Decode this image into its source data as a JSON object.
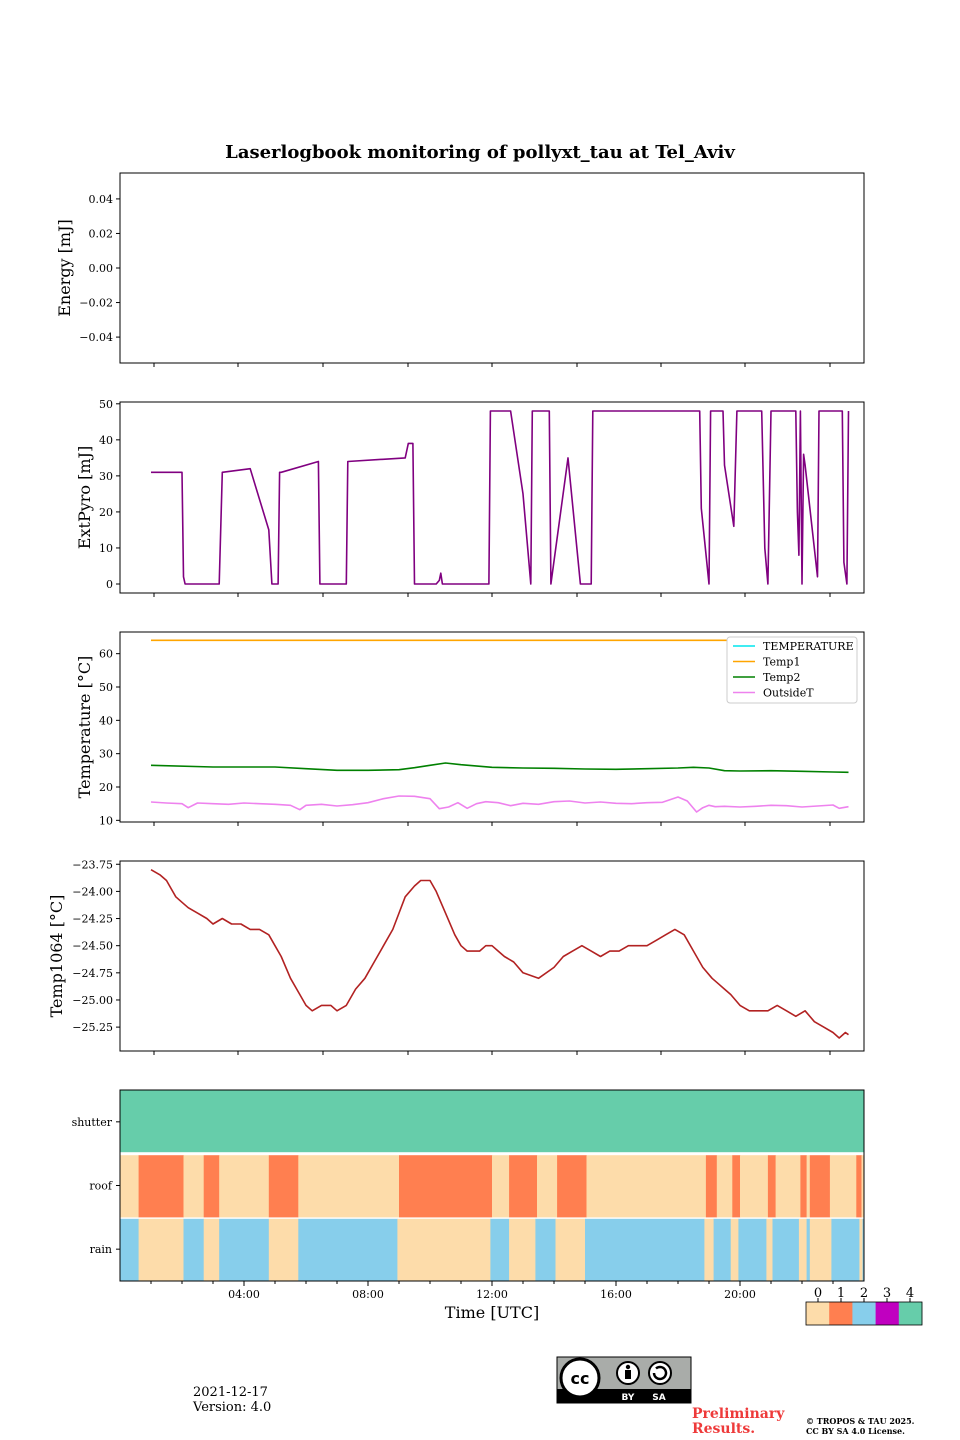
{
  "title": "Laserlogbook monitoring of pollyxt_tau at Tel_Aviv",
  "x_label": "Time [UTC]",
  "x_ticks": [
    "04:00",
    "08:00",
    "12:00",
    "16:00",
    "20:00"
  ],
  "chart_data": [
    {
      "type": "line",
      "ylabel": "Energy [mJ]",
      "yticks": [
        "0.04",
        "0.02",
        "0.00",
        "−0.02",
        "−0.04"
      ],
      "ylim": [
        -0.055,
        0.055
      ],
      "series": []
    },
    {
      "type": "line",
      "ylabel": "ExtPyro [mJ]",
      "yticks": [
        "50",
        "40",
        "30",
        "20",
        "10",
        "0"
      ],
      "ylim": [
        -2.5,
        50.5
      ],
      "xlim_hours": [
        -1.0,
        23.0
      ],
      "color": "#800080",
      "series": [
        {
          "x": [
            0.0,
            1.0,
            1.05,
            1.1,
            2.2,
            2.3,
            3.2,
            3.8,
            3.9,
            4.1,
            4.15,
            4.2,
            5.4,
            5.45,
            6.3,
            6.35,
            8.2,
            8.3,
            8.45,
            8.5,
            9.2,
            9.3,
            9.35,
            9.4,
            10.9,
            10.95,
            11.6,
            12.0,
            12.25,
            12.3,
            12.85,
            12.9,
            13.45,
            13.85,
            14.2,
            14.25,
            17.7,
            17.75,
            18.0,
            18.05,
            18.45,
            18.5,
            18.8,
            18.9,
            18.95,
            19.7,
            19.8,
            19.9,
            20.0,
            20.8,
            20.85,
            20.9,
            20.95,
            21.0,
            21.05,
            21.1,
            21.5,
            21.55,
            22.3,
            22.35,
            22.45,
            22.5
          ],
          "y": [
            31,
            31,
            2,
            0,
            0,
            31,
            32,
            15,
            0,
            0,
            31,
            31,
            34,
            0,
            0,
            34,
            35,
            39,
            39,
            0,
            0,
            1,
            3,
            0,
            0,
            48,
            48,
            25,
            0,
            48,
            48,
            0,
            35,
            0,
            0,
            48,
            48,
            21,
            0,
            48,
            48,
            33,
            16,
            48,
            48,
            48,
            10,
            0,
            48,
            48,
            20,
            8,
            48,
            0,
            36,
            33,
            2,
            48,
            48,
            6,
            0,
            48
          ]
        }
      ]
    },
    {
      "type": "line",
      "ylabel": "Temperature [°C]",
      "yticks": [
        "60",
        "50",
        "40",
        "30",
        "20",
        "10"
      ],
      "ylim": [
        9.5,
        66.5
      ],
      "xlim_hours": [
        -1.0,
        23.0
      ],
      "legend": "top-right",
      "series": [
        {
          "name": "TEMPERATURE",
          "color": "#00e5ee",
          "x": [],
          "y": []
        },
        {
          "name": "Temp1",
          "color": "#ffa500",
          "x": [
            0,
            22.5
          ],
          "y": [
            64,
            64
          ]
        },
        {
          "name": "Temp2",
          "color": "#008000",
          "x": [
            0,
            2,
            4,
            5,
            6,
            7,
            8,
            8.5,
            9,
            9.5,
            10,
            11,
            12,
            13,
            14,
            15,
            16,
            17,
            17.5,
            18,
            18.5,
            19,
            20,
            21,
            22,
            22.5
          ],
          "y": [
            26.5,
            26,
            26,
            25.5,
            25,
            25,
            25.2,
            25.8,
            26.5,
            27.2,
            26.7,
            25.9,
            25.7,
            25.6,
            25.4,
            25.3,
            25.5,
            25.7,
            25.9,
            25.7,
            24.9,
            24.8,
            24.9,
            24.7,
            24.5,
            24.4
          ]
        },
        {
          "name": "OutsideT",
          "color": "#ee82ee",
          "x": [
            0,
            0.5,
            1,
            1.2,
            1.5,
            2,
            2.5,
            3,
            3.5,
            4,
            4.5,
            4.8,
            5,
            5.5,
            6,
            6.5,
            7,
            7.5,
            8,
            8.5,
            9,
            9.3,
            9.6,
            9.9,
            10.2,
            10.5,
            10.8,
            11.2,
            11.6,
            12,
            12.5,
            13,
            13.5,
            14,
            14.5,
            15,
            15.5,
            16,
            16.5,
            17,
            17.3,
            17.6,
            17.8,
            18,
            18.2,
            18.5,
            19,
            19.5,
            20,
            20.5,
            21,
            21.5,
            22,
            22.2,
            22.5
          ],
          "y": [
            15.5,
            15.2,
            15,
            13.8,
            15.2,
            15,
            14.8,
            15.2,
            15,
            14.8,
            14.5,
            13.2,
            14.5,
            14.8,
            14.3,
            14.7,
            15.3,
            16.5,
            17.3,
            17.2,
            16.5,
            13.5,
            14,
            15.3,
            13.6,
            15,
            15.6,
            15.3,
            14.4,
            15.1,
            14.8,
            15.6,
            15.8,
            15.2,
            15.5,
            15.1,
            15,
            15.3,
            15.4,
            17,
            15.8,
            12.5,
            13.8,
            14.5,
            14.1,
            14.2,
            14,
            14.2,
            14.5,
            14.4,
            14,
            14.3,
            14.6,
            13.6,
            14.1
          ]
        }
      ]
    },
    {
      "type": "line",
      "ylabel": "Temp1064 [°C]",
      "yticks": [
        "−23.75",
        "−24.00",
        "−24.25",
        "−24.50",
        "−24.75",
        "−25.00",
        "−25.25"
      ],
      "ylim": [
        -25.47,
        -23.72
      ],
      "xlim_hours": [
        -1.0,
        23.0
      ],
      "color": "#b22222",
      "series": [
        {
          "x": [
            0,
            0.3,
            0.5,
            0.7,
            0.8,
            1.0,
            1.2,
            1.5,
            1.8,
            2.0,
            2.3,
            2.6,
            2.9,
            3.2,
            3.5,
            3.8,
            4.0,
            4.2,
            4.5,
            4.8,
            5.0,
            5.2,
            5.5,
            5.8,
            6.0,
            6.3,
            6.6,
            6.9,
            7.2,
            7.5,
            7.8,
            8.0,
            8.2,
            8.5,
            8.7,
            9.0,
            9.2,
            9.5,
            9.8,
            10.0,
            10.2,
            10.4,
            10.6,
            10.8,
            11.0,
            11.2,
            11.4,
            11.7,
            12.0,
            12.5,
            13.0,
            13.3,
            13.6,
            13.9,
            14.2,
            14.5,
            14.8,
            15.1,
            15.4,
            15.7,
            16.0,
            16.3,
            16.6,
            16.9,
            17.2,
            17.5,
            17.8,
            18.1,
            18.3,
            18.5,
            18.7,
            19.0,
            19.3,
            19.6,
            19.9,
            20.2,
            20.5,
            20.8,
            21.1,
            21.4,
            21.7,
            22.0,
            22.2,
            22.4,
            22.5
          ],
          "y": [
            -23.8,
            -23.85,
            -23.9,
            -24.0,
            -24.05,
            -24.1,
            -24.15,
            -24.2,
            -24.25,
            -24.3,
            -24.25,
            -24.3,
            -24.3,
            -24.35,
            -24.35,
            -24.4,
            -24.5,
            -24.6,
            -24.8,
            -24.95,
            -25.05,
            -25.1,
            -25.05,
            -25.05,
            -25.1,
            -25.05,
            -24.9,
            -24.8,
            -24.65,
            -24.5,
            -24.35,
            -24.2,
            -24.05,
            -23.95,
            -23.9,
            -23.9,
            -24.0,
            -24.2,
            -24.4,
            -24.5,
            -24.55,
            -24.55,
            -24.55,
            -24.5,
            -24.5,
            -24.55,
            -24.6,
            -24.65,
            -24.75,
            -24.8,
            -24.7,
            -24.6,
            -24.55,
            -24.5,
            -24.55,
            -24.6,
            -24.55,
            -24.55,
            -24.5,
            -24.5,
            -24.5,
            -24.45,
            -24.4,
            -24.35,
            -24.4,
            -24.55,
            -24.7,
            -24.8,
            -24.85,
            -24.9,
            -24.95,
            -25.05,
            -25.1,
            -25.1,
            -25.1,
            -25.05,
            -25.1,
            -25.15,
            -25.1,
            -25.2,
            -25.25,
            -25.3,
            -25.35,
            -25.3,
            -25.32
          ]
        }
      ]
    },
    {
      "type": "heatmap",
      "rows": [
        "shutter",
        "roof",
        "rain"
      ],
      "xlim_hours": [
        0,
        24
      ],
      "colorbar_ticks": [
        "0",
        "1",
        "2",
        "3",
        "4"
      ],
      "colorbar_colors": [
        "#fddcaa",
        "#ff7f50",
        "#87ceeb",
        "#c000c0",
        "#66cdaa"
      ],
      "segments": {
        "shutter": [
          [
            0,
            24,
            4
          ]
        ],
        "roof": [
          [
            0,
            0.6,
            0
          ],
          [
            0.6,
            2.05,
            1
          ],
          [
            2.05,
            2.7,
            0
          ],
          [
            2.7,
            3.2,
            1
          ],
          [
            3.2,
            4.8,
            0
          ],
          [
            4.8,
            5.75,
            1
          ],
          [
            5.75,
            9.0,
            0
          ],
          [
            9.0,
            12.0,
            1
          ],
          [
            12.0,
            12.55,
            0
          ],
          [
            12.55,
            13.45,
            1
          ],
          [
            13.45,
            14.1,
            0
          ],
          [
            14.1,
            15.05,
            1
          ],
          [
            15.05,
            18.9,
            0
          ],
          [
            18.9,
            19.25,
            1
          ],
          [
            19.25,
            19.75,
            0
          ],
          [
            19.75,
            20.0,
            1
          ],
          [
            20.0,
            20.9,
            0
          ],
          [
            20.9,
            21.15,
            1
          ],
          [
            21.15,
            21.95,
            0
          ],
          [
            21.95,
            22.15,
            1
          ],
          [
            22.15,
            22.25,
            0
          ],
          [
            22.25,
            22.9,
            1
          ],
          [
            22.9,
            23.75,
            0
          ],
          [
            23.75,
            23.92,
            1
          ],
          [
            23.92,
            24,
            0
          ]
        ],
        "rain": [
          [
            0,
            0.6,
            2
          ],
          [
            0.6,
            2.05,
            0
          ],
          [
            2.05,
            2.7,
            2
          ],
          [
            2.7,
            3.2,
            0
          ],
          [
            3.2,
            4.8,
            2
          ],
          [
            4.8,
            5.75,
            0
          ],
          [
            5.75,
            8.95,
            2
          ],
          [
            8.95,
            11.95,
            0
          ],
          [
            11.95,
            12.55,
            2
          ],
          [
            12.55,
            13.4,
            0
          ],
          [
            13.4,
            14.05,
            2
          ],
          [
            14.05,
            15.0,
            0
          ],
          [
            15.0,
            18.85,
            2
          ],
          [
            18.85,
            19.15,
            0
          ],
          [
            19.15,
            19.7,
            2
          ],
          [
            19.7,
            19.95,
            0
          ],
          [
            19.95,
            20.85,
            2
          ],
          [
            20.85,
            21.05,
            0
          ],
          [
            21.05,
            21.9,
            2
          ],
          [
            21.9,
            22.15,
            0
          ],
          [
            22.15,
            22.25,
            2
          ],
          [
            22.25,
            22.95,
            0
          ],
          [
            22.95,
            23.85,
            2
          ],
          [
            23.85,
            23.95,
            0
          ],
          [
            23.95,
            24,
            2
          ]
        ]
      }
    }
  ],
  "footer": {
    "date": "2021-12-17",
    "version": "Version: 4.0",
    "prelim_line1": "Preliminary",
    "prelim_line2": "Results.",
    "copyright1": "© TROPOS & TAU 2025.",
    "copyright2": "CC BY SA 4.0 License.",
    "cc_by": "BY",
    "cc_sa": "SA",
    "cc_mark": "cc"
  }
}
